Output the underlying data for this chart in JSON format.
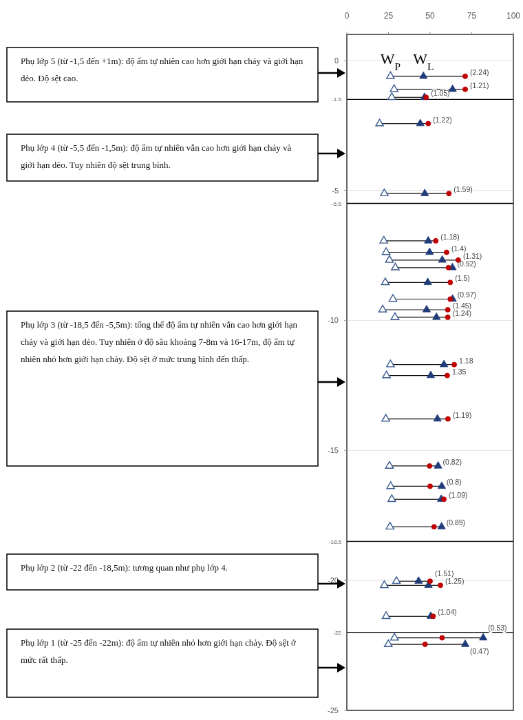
{
  "chart_data": {
    "type": "scatter",
    "xlim": [
      0,
      100
    ],
    "xticks": [
      0,
      25,
      50,
      75,
      100
    ],
    "ylim": [
      -25,
      1
    ],
    "yticks": [
      0,
      -5,
      -10,
      -15,
      -20,
      -25
    ],
    "grid": "y",
    "series": [
      {
        "name": "W$_{P}$",
        "marker": "triangle",
        "color": "#3b5b8f",
        "x": [
          26.2,
          28.4,
          27.0,
          19.7,
          22.5,
          22.2,
          23.6,
          25.6,
          29.1,
          23.1,
          27.7,
          21.5,
          28.9,
          26.2,
          23.8,
          23.4,
          25.6,
          26.3,
          27.0,
          25.9,
          29.8,
          22.5,
          23.6,
          28.6,
          24.9
        ],
        "values": [
          -0.61,
          -1.11,
          -1.42,
          -2.43,
          -5.12,
          -6.94,
          -7.38,
          -7.68,
          -7.97,
          -8.54,
          -9.18,
          -9.59,
          -9.88,
          -11.7,
          -12.12,
          -13.79,
          -15.6,
          -16.38,
          -16.88,
          -17.94,
          -20.03,
          -20.19,
          -21.38,
          -22.21,
          -22.46
        ]
      },
      {
        "name": "W$_{L}$",
        "marker": "triangle",
        "color": "#1f3b7a",
        "x": [
          46.0,
          63.5,
          46.6,
          44.1,
          46.8,
          48.9,
          49.7,
          57.3,
          63.4,
          48.6,
          63.5,
          47.9,
          53.8,
          58.3,
          50.4,
          54.4,
          54.8,
          57.0,
          56.7,
          56.9,
          43.1,
          49.0,
          50.4,
          81.9,
          71.1
        ],
        "values": [
          -0.61,
          -1.11,
          -1.42,
          -2.43,
          -5.12,
          -6.94,
          -7.38,
          -7.68,
          -7.97,
          -8.54,
          -9.18,
          -9.59,
          -9.88,
          -11.7,
          -12.12,
          -13.79,
          -15.6,
          -16.38,
          -16.88,
          -17.94,
          -20.03,
          -20.19,
          -21.38,
          -22.21,
          -22.46
        ]
      },
      {
        "marker": "circle",
        "color": "#c00000",
        "x": [
          71.1,
          71.1,
          47.6,
          48.9,
          61.3,
          53.4,
          59.9,
          66.9,
          61.0,
          62.1,
          62.1,
          60.6,
          60.6,
          64.5,
          60.3,
          60.7,
          49.7,
          50.0,
          58.3,
          52.4,
          50.0,
          56.2,
          51.8,
          57.2,
          47.0
        ],
        "values": [
          -0.61,
          -1.11,
          -1.42,
          -2.43,
          -5.12,
          -6.94,
          -7.38,
          -7.68,
          -7.97,
          -8.54,
          -9.18,
          -9.59,
          -9.88,
          -11.7,
          -12.12,
          -13.79,
          -15.6,
          -16.38,
          -16.88,
          -17.94,
          -20.03,
          -20.19,
          -21.38,
          -22.21,
          -22.46
        ]
      }
    ],
    "ref_lines": [
      {
        "axis": "y",
        "value": -1.5,
        "label": "-1.5",
        "color": "#000000"
      },
      {
        "axis": "y",
        "value": -5.5,
        "label": "-5.5",
        "color": "#000000"
      },
      {
        "axis": "y",
        "value": -18.5,
        "label": "-18.5",
        "color": "#000000"
      },
      {
        "axis": "y",
        "value": -22,
        "label": "-22",
        "color": "#000000"
      }
    ],
    "annotations": [
      "Phụ lớp 5 (từ -1,5 đến +1m): độ ẩm tự nhiên cao hơn giới hạn chảy và giới hạn dẻo. Độ sệt cao.",
      "Phụ lớp 4 (từ -5,5 đến -1,5m): độ ẩm tự nhiên vẫn cao hơn giới hạn chảy và giới hạn dẻo. Tuy nhiên độ sệt trung bình.",
      "Phụ lớp 3 (từ -18,5 đến -5,5m): tổng thể độ ẩm tự nhiên vẫn cao hơn giới hạn chảy và giới hạn dẻo. Tuy nhiên ở độ sâu khoảng 7-8m và 16-17m, độ ẩm tự nhiên nhỏ hơn giới hạn chảy. Độ sệt ở mức trung bình đến thấp.",
      "Phụ lớp 2 (từ -22 đến -18,5m): tương quan như phụ lớp 4.",
      "Phụ lớp 1 (từ -25 đến -22m): độ ẩm tự nhiên nhỏ hơn giới hạn chảy. Độ sệt ở mức rất thấp.",
      {
        "text": "(2.24)",
        "x": 71.1,
        "y": -0.61
      },
      {
        "text": "(1.21)",
        "x": 71.1,
        "y": -1.11
      },
      {
        "text": "(1.05)",
        "x": 47.6,
        "y": -1.42
      },
      {
        "text": "(1.22)",
        "x": 48.9,
        "y": -2.43
      },
      {
        "text": "(1.59)",
        "x": 61.3,
        "y": -5.12
      },
      {
        "text": "(1.18)",
        "x": 53.4,
        "y": -6.94
      },
      {
        "text": "(1.4)",
        "x": 59.9,
        "y": -7.38
      },
      {
        "text": "(1.31)",
        "x": 66.9,
        "y": -7.68
      },
      {
        "text": "(0.92)",
        "x": 63.4,
        "y": -7.97
      },
      {
        "text": "(1.5)",
        "x": 62.1,
        "y": -8.54
      },
      {
        "text": "(0.97)",
        "x": 63.5,
        "y": -9.18
      },
      {
        "text": "(1.45)",
        "x": 60.6,
        "y": -9.59
      },
      {
        "text": "(1.24)",
        "x": 60.6,
        "y": -9.88
      },
      {
        "text": "1.18",
        "x": 64.5,
        "y": -11.7
      },
      {
        "text": "1.35",
        "x": 60.3,
        "y": -12.12
      },
      {
        "text": "(1.19)",
        "x": 60.7,
        "y": -13.79
      },
      {
        "text": "(0.82)",
        "x": 54.8,
        "y": -15.6
      },
      {
        "text": "(0.8)",
        "x": 57.0,
        "y": -16.38
      },
      {
        "text": "(1.09)",
        "x": 58.3,
        "y": -16.88
      },
      {
        "text": "(0.89)",
        "x": 56.9,
        "y": -17.94
      },
      {
        "text": "(1.51)",
        "x": 50.0,
        "y": -20.03
      },
      {
        "text": "(1.25)",
        "x": 56.2,
        "y": -20.19
      },
      {
        "text": "(1.04)",
        "x": 51.8,
        "y": -21.38
      },
      {
        "text": "(0.53)",
        "x": 81.9,
        "y": -22.21
      },
      {
        "text": "(0.47)",
        "x": 71.1,
        "y": -22.46
      }
    ]
  }
}
